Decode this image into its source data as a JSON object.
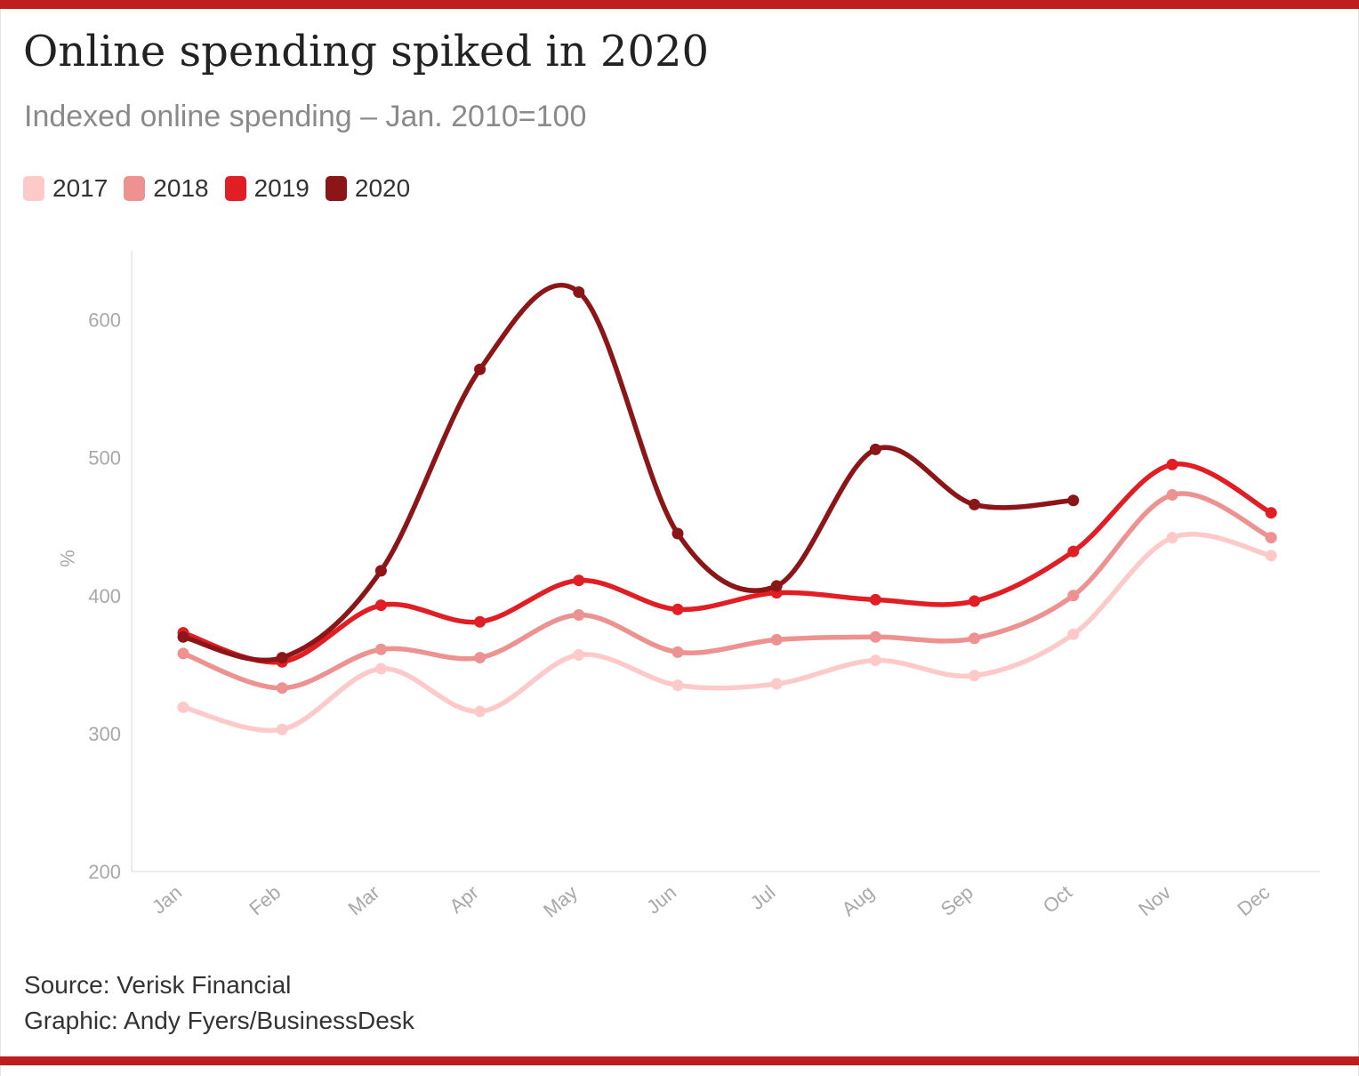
{
  "header": {
    "title": "Online spending spiked in 2020",
    "subtitle": "Indexed online spending – Jan. 2010=100"
  },
  "footer": {
    "source": "Source: Verisk Financial",
    "credit": "Graphic: Andy Fyers/BusinessDesk"
  },
  "colors": {
    "accent_bar": "#be1e1e",
    "grid": "#e6e6e6",
    "tick_text": "#a8a8a8"
  },
  "chart_data": {
    "type": "line",
    "title": "Online spending spiked in 2020",
    "subtitle": "Indexed online spending – Jan. 2010=100",
    "xlabel": "",
    "ylabel": "%",
    "ylim": [
      200,
      650
    ],
    "yticks": [
      200,
      300,
      400,
      500,
      600
    ],
    "grid": false,
    "legend_position": "top-left",
    "categories": [
      "Jan",
      "Feb",
      "Mar",
      "Apr",
      "May",
      "Jun",
      "Jul",
      "Aug",
      "Sep",
      "Oct",
      "Nov",
      "Dec"
    ],
    "series": [
      {
        "name": "2017",
        "color": "#fdc9c9",
        "values": [
          319,
          303,
          347,
          316,
          357,
          335,
          336,
          353,
          342,
          372,
          442,
          429
        ]
      },
      {
        "name": "2018",
        "color": "#ee9191",
        "values": [
          358,
          333,
          361,
          355,
          386,
          359,
          368,
          370,
          369,
          400,
          473,
          442
        ]
      },
      {
        "name": "2019",
        "color": "#e01e24",
        "values": [
          373,
          352,
          393,
          381,
          411,
          390,
          402,
          397,
          396,
          432,
          495,
          460
        ]
      },
      {
        "name": "2020",
        "color": "#8b1517",
        "values": [
          370,
          355,
          418,
          564,
          620,
          445,
          407,
          506,
          466,
          469,
          null,
          null
        ]
      }
    ]
  },
  "sources": [
    "Source: Verisk Financial",
    "Graphic: Andy Fyers/BusinessDesk"
  ]
}
